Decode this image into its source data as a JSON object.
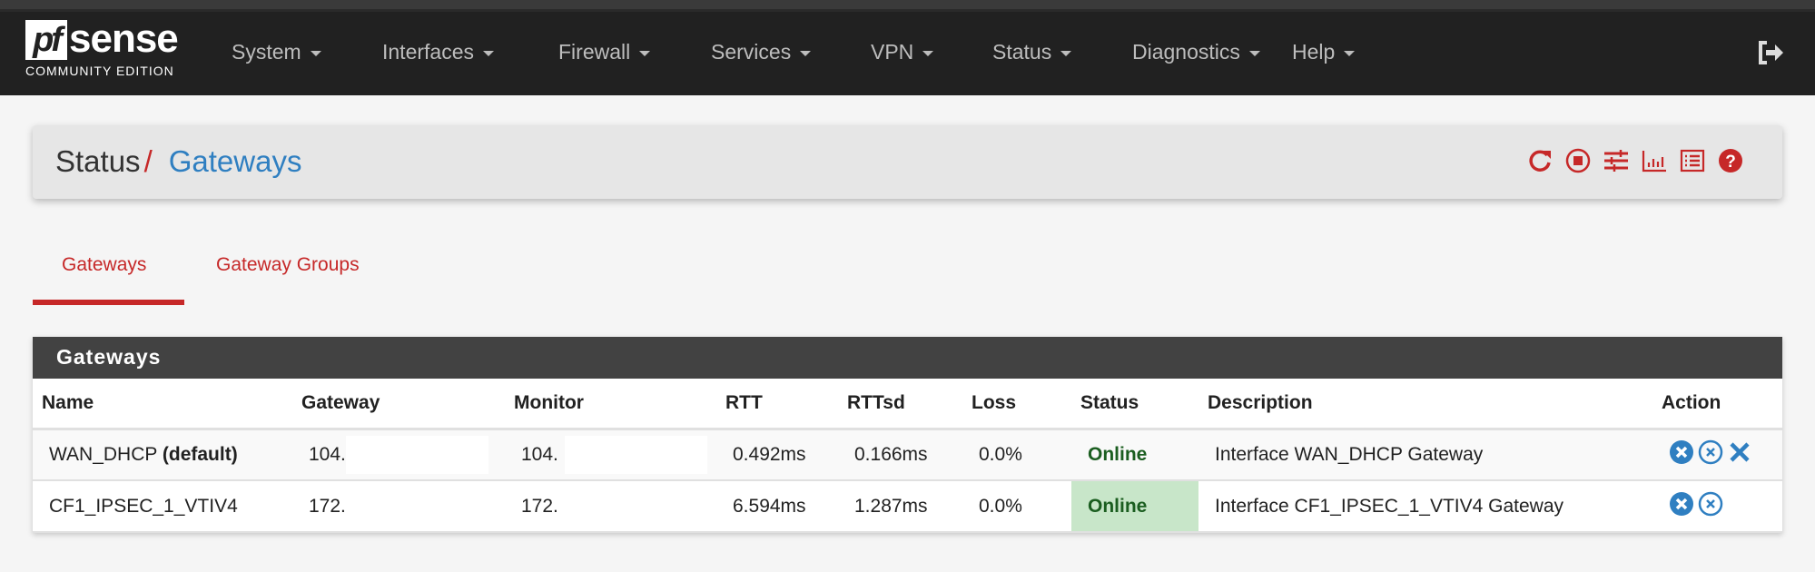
{
  "brand": {
    "logo_text": "pfsense",
    "edition": "COMMUNITY EDITION"
  },
  "nav": {
    "items": [
      {
        "label": "System"
      },
      {
        "label": "Interfaces"
      },
      {
        "label": "Firewall"
      },
      {
        "label": "Services"
      },
      {
        "label": "VPN"
      },
      {
        "label": "Status"
      },
      {
        "label": "Diagnostics"
      },
      {
        "label": "Help"
      }
    ],
    "logout_icon": "sign-out-icon"
  },
  "breadcrumb": {
    "parent": "Status",
    "separator": "/",
    "current": "Gateways",
    "icons": [
      "refresh-icon",
      "stop-circle-icon",
      "sliders-icon",
      "bar-chart-icon",
      "list-icon",
      "help-icon"
    ]
  },
  "tabs": [
    {
      "label": "Gateways",
      "active": true
    },
    {
      "label": "Gateway Groups",
      "active": false
    }
  ],
  "panel": {
    "title": "Gateways",
    "columns": [
      "Name",
      "Gateway",
      "Monitor",
      "RTT",
      "RTTsd",
      "Loss",
      "Status",
      "Description",
      "Action"
    ],
    "rows": [
      {
        "name": "WAN_DHCP",
        "name_suffix": "(default)",
        "gateway": "104.",
        "monitor": "104.",
        "rtt": "0.492ms",
        "rttsd": "0.166ms",
        "loss": "0.0%",
        "status": "Online",
        "description": "Interface WAN_DHCP Gateway",
        "actions": [
          "kill-states-icon",
          "reset-icon",
          "delete-icon"
        ]
      },
      {
        "name": "CF1_IPSEC_1_VTIV4",
        "name_suffix": "",
        "gateway": "172.",
        "monitor": "172.",
        "rtt": "6.594ms",
        "rttsd": "1.287ms",
        "loss": "0.0%",
        "status": "Online",
        "description": "Interface CF1_IPSEC_1_VTIV4 Gateway",
        "actions": [
          "kill-states-icon",
          "reset-icon"
        ]
      }
    ]
  },
  "colors": {
    "accent": "#c62828",
    "link": "#2f7fc1",
    "online_bg": "#c8e6c9",
    "online_text": "#1b5e20",
    "nav_bg": "#212121",
    "panel_header": "#424242"
  }
}
